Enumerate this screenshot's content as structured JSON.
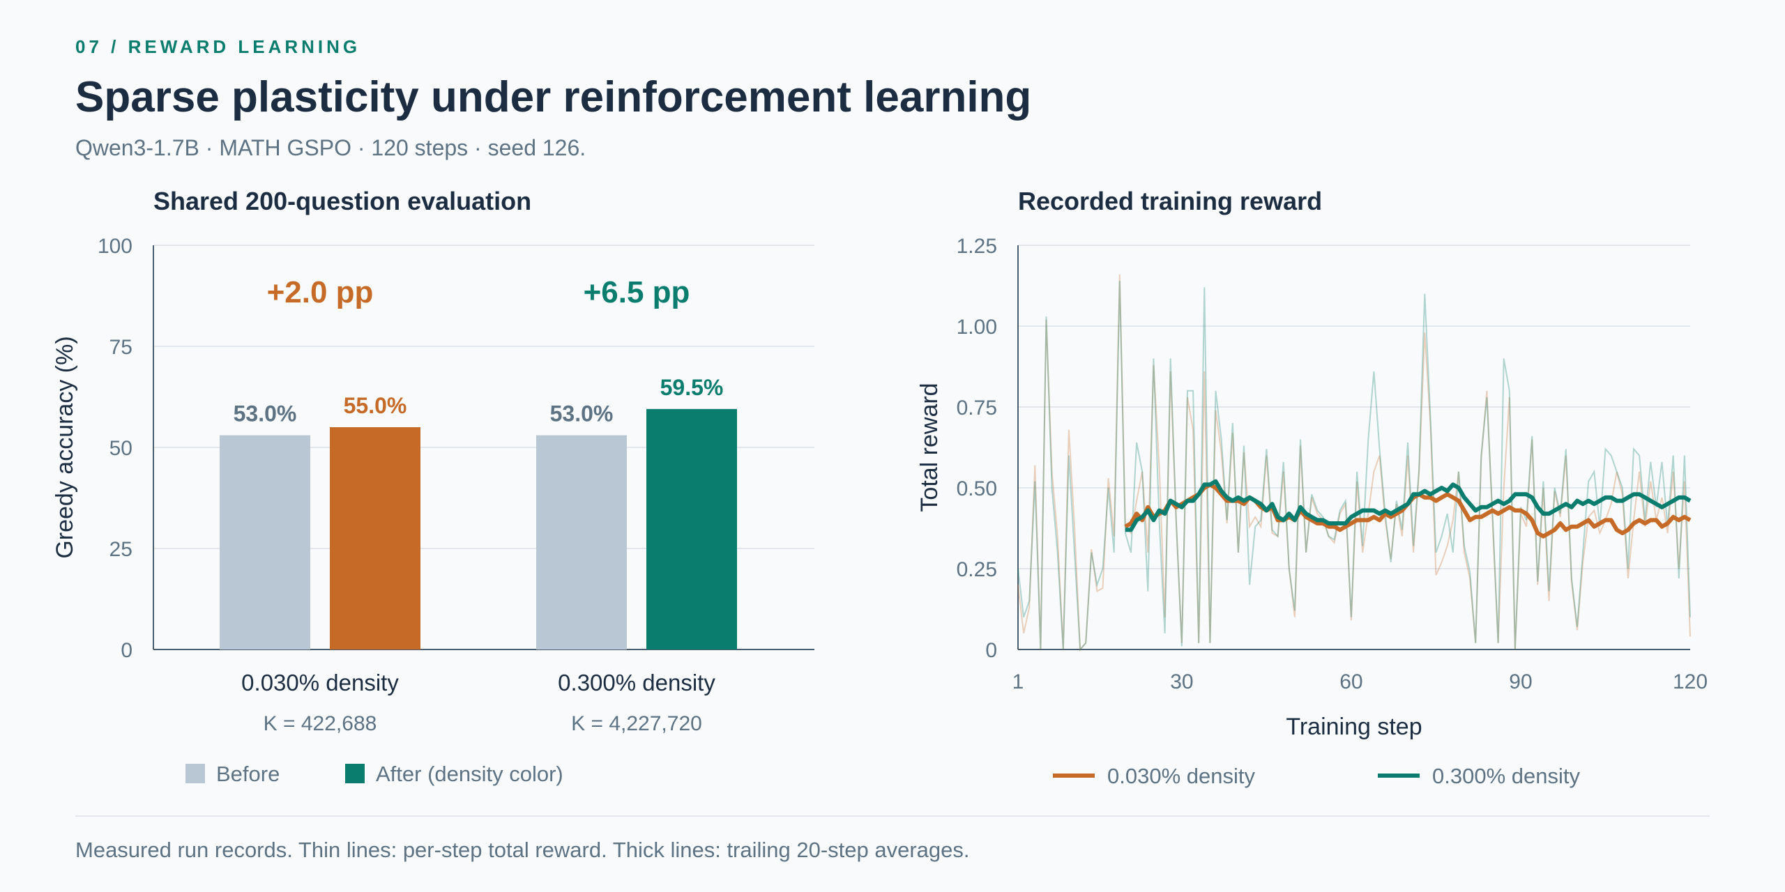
{
  "header": {
    "kicker": "07 / REWARD LEARNING",
    "title": "Sparse plasticity under reinforcement learning",
    "subtitle": "Qwen3-1.7B · MATH GSPO · 120 steps · seed 126."
  },
  "footnote": "Measured run records. Thin lines: per-step total reward. Thick lines: trailing 20-step averages.",
  "colors": {
    "before": "#b8c7d3",
    "low_density": "#c66a28",
    "high_density": "#0a7d6e",
    "axis": "#4a5d6e",
    "grid": "#e1e7ec",
    "text_muted": "#5d7384",
    "text_dark": "#1c2d42"
  },
  "chart_data": [
    {
      "type": "bar",
      "title": "Shared 200-question evaluation",
      "ylabel": "Greedy accuracy (%)",
      "ylim": [
        0,
        100
      ],
      "yticks": [
        0,
        25,
        50,
        75,
        100
      ],
      "groups": [
        {
          "label": "0.030% density",
          "sublabel": "K = 422,688",
          "before": 53.0,
          "after": 55.0,
          "before_label": "53.0%",
          "after_label": "55.0%",
          "delta_label": "+2.0 pp",
          "color_key": "low_density"
        },
        {
          "label": "0.300% density",
          "sublabel": "K = 4,227,720",
          "before": 53.0,
          "after": 59.5,
          "before_label": "53.0%",
          "after_label": "59.5%",
          "delta_label": "+6.5 pp",
          "color_key": "high_density"
        }
      ],
      "legend": [
        {
          "label": "Before",
          "color_key": "before"
        },
        {
          "label": "After (density color)",
          "color_key": "high_density"
        }
      ],
      "legend_placement": "bottom"
    },
    {
      "type": "line",
      "title": "Recorded training reward",
      "xlabel": "Training step",
      "ylabel": "Total reward",
      "xlim": [
        1,
        120
      ],
      "ylim": [
        0,
        1.25
      ],
      "xticks": [
        1,
        30,
        60,
        90,
        120
      ],
      "yticks": [
        "0",
        "0.25",
        "0.50",
        "0.75",
        "1.00",
        "1.25"
      ],
      "grid": true,
      "legend_placement": "bottom",
      "series": [
        {
          "name": "0.030% density",
          "color_key": "low_density",
          "raw": [
            0.2,
            0.05,
            0.13,
            0.57,
            0.0,
            1.02,
            0.55,
            0.35,
            0.0,
            0.68,
            0.38,
            0.0,
            0.02,
            0.31,
            0.18,
            0.19,
            0.53,
            0.35,
            1.16,
            0.38,
            0.36,
            0.46,
            0.55,
            0.3,
            0.88,
            0.57,
            0.1,
            0.86,
            0.4,
            0.02,
            0.78,
            0.68,
            0.02,
            0.86,
            0.02,
            0.74,
            0.61,
            0.39,
            0.67,
            0.3,
            0.61,
            0.38,
            0.41,
            0.38,
            0.6,
            0.36,
            0.35,
            0.55,
            0.25,
            0.1,
            0.63,
            0.3,
            0.47,
            0.42,
            0.4,
            0.35,
            0.33,
            0.42,
            0.45,
            0.09,
            0.52,
            0.3,
            0.42,
            0.55,
            0.6,
            0.4,
            0.28,
            0.45,
            0.35,
            0.6,
            0.3,
            0.55,
            0.98,
            0.7,
            0.23,
            0.27,
            0.32,
            0.4,
            0.55,
            0.3,
            0.22,
            0.02,
            0.59,
            0.8,
            0.4,
            0.02,
            0.5,
            0.78,
            0.0,
            0.42,
            0.38,
            0.65,
            0.2,
            0.5,
            0.15,
            0.49,
            0.41,
            0.6,
            0.21,
            0.06,
            0.27,
            0.41,
            0.43,
            0.36,
            0.4,
            0.45,
            0.55,
            0.48,
            0.22,
            0.4,
            0.55,
            0.38,
            0.52,
            0.4,
            0.47,
            0.36,
            0.55,
            0.25,
            0.52,
            0.04
          ],
          "avg_start": 20,
          "avg": [
            0.38,
            0.39,
            0.42,
            0.4,
            0.44,
            0.41,
            0.42,
            0.43,
            0.46,
            0.44,
            0.45,
            0.46,
            0.47,
            0.48,
            0.5,
            0.51,
            0.5,
            0.48,
            0.46,
            0.46,
            0.46,
            0.45,
            0.47,
            0.46,
            0.44,
            0.43,
            0.44,
            0.4,
            0.4,
            0.41,
            0.4,
            0.43,
            0.41,
            0.4,
            0.39,
            0.39,
            0.38,
            0.38,
            0.37,
            0.38,
            0.39,
            0.4,
            0.4,
            0.4,
            0.41,
            0.4,
            0.42,
            0.41,
            0.42,
            0.43,
            0.45,
            0.47,
            0.48,
            0.47,
            0.47,
            0.46,
            0.47,
            0.48,
            0.47,
            0.46,
            0.43,
            0.4,
            0.41,
            0.41,
            0.42,
            0.43,
            0.42,
            0.43,
            0.44,
            0.43,
            0.43,
            0.42,
            0.4,
            0.36,
            0.35,
            0.36,
            0.37,
            0.39,
            0.37,
            0.38,
            0.38,
            0.39,
            0.4,
            0.38,
            0.39,
            0.4,
            0.4,
            0.37,
            0.36,
            0.37,
            0.39,
            0.4,
            0.39,
            0.4,
            0.4,
            0.38,
            0.39,
            0.41,
            0.4,
            0.41,
            0.4
          ]
        },
        {
          "name": "0.300% density",
          "color_key": "high_density",
          "raw": [
            0.25,
            0.1,
            0.15,
            0.52,
            0.0,
            1.03,
            0.5,
            0.3,
            0.0,
            0.6,
            0.3,
            0.0,
            0.02,
            0.3,
            0.2,
            0.25,
            0.5,
            0.3,
            1.14,
            0.36,
            0.3,
            0.64,
            0.55,
            0.18,
            0.9,
            0.4,
            0.05,
            0.9,
            0.4,
            0.01,
            0.8,
            0.8,
            0.02,
            1.12,
            0.02,
            0.8,
            0.65,
            0.4,
            0.7,
            0.3,
            0.63,
            0.2,
            0.38,
            0.4,
            0.62,
            0.37,
            0.35,
            0.58,
            0.25,
            0.12,
            0.65,
            0.3,
            0.48,
            0.43,
            0.41,
            0.35,
            0.34,
            0.43,
            0.46,
            0.1,
            0.55,
            0.32,
            0.65,
            0.86,
            0.62,
            0.42,
            0.27,
            0.46,
            0.37,
            0.64,
            0.32,
            0.56,
            1.1,
            0.72,
            0.3,
            0.35,
            0.42,
            0.3,
            0.55,
            0.32,
            0.24,
            0.02,
            0.6,
            0.78,
            0.42,
            0.02,
            0.9,
            0.8,
            0.0,
            0.44,
            0.4,
            0.66,
            0.21,
            0.52,
            0.18,
            0.5,
            0.42,
            0.62,
            0.22,
            0.07,
            0.3,
            0.52,
            0.55,
            0.38,
            0.62,
            0.6,
            0.55,
            0.5,
            0.25,
            0.62,
            0.6,
            0.4,
            0.58,
            0.44,
            0.58,
            0.38,
            0.6,
            0.22,
            0.6,
            0.1
          ],
          "avg_start": 20,
          "avg": [
            0.37,
            0.37,
            0.4,
            0.41,
            0.43,
            0.4,
            0.43,
            0.42,
            0.46,
            0.45,
            0.44,
            0.46,
            0.46,
            0.48,
            0.51,
            0.51,
            0.52,
            0.49,
            0.47,
            0.46,
            0.47,
            0.46,
            0.47,
            0.46,
            0.45,
            0.43,
            0.45,
            0.41,
            0.4,
            0.42,
            0.4,
            0.44,
            0.42,
            0.41,
            0.4,
            0.4,
            0.39,
            0.39,
            0.39,
            0.39,
            0.41,
            0.42,
            0.43,
            0.43,
            0.43,
            0.42,
            0.43,
            0.42,
            0.43,
            0.44,
            0.45,
            0.48,
            0.48,
            0.49,
            0.48,
            0.49,
            0.5,
            0.49,
            0.51,
            0.5,
            0.47,
            0.45,
            0.43,
            0.44,
            0.44,
            0.45,
            0.46,
            0.45,
            0.46,
            0.48,
            0.48,
            0.48,
            0.47,
            0.44,
            0.42,
            0.42,
            0.43,
            0.44,
            0.45,
            0.44,
            0.46,
            0.45,
            0.46,
            0.45,
            0.46,
            0.47,
            0.47,
            0.46,
            0.46,
            0.47,
            0.48,
            0.48,
            0.47,
            0.46,
            0.45,
            0.44,
            0.45,
            0.46,
            0.47,
            0.47,
            0.46
          ]
        }
      ],
      "legend": [
        {
          "label": "0.030% density",
          "color_key": "low_density"
        },
        {
          "label": "0.300% density",
          "color_key": "high_density"
        }
      ]
    }
  ]
}
